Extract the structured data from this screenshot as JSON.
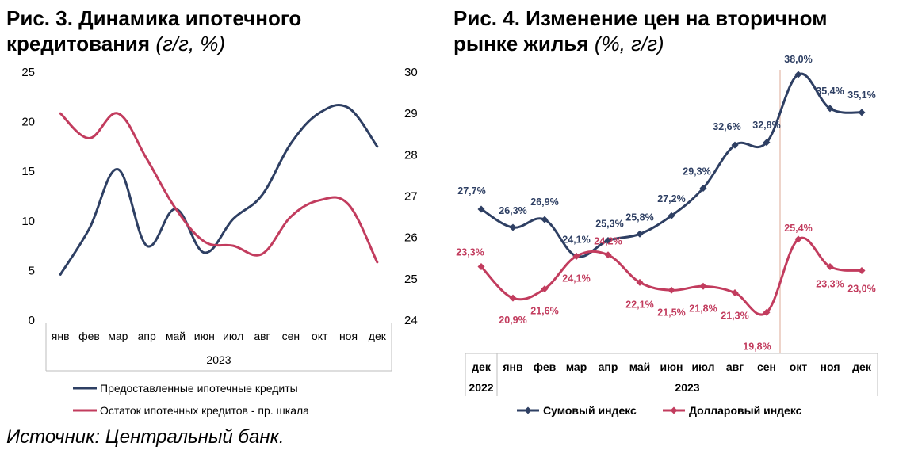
{
  "left_title": {
    "main": "Рис. 3. Динамика ипотечного кредитования",
    "unit": "(г/г, %)"
  },
  "right_title": {
    "main": "Рис. 4. Изменение цен на вторичном рынке жилья",
    "unit": "(%, г/г)"
  },
  "source": "Источник: Центральный банк.",
  "chart_data": [
    {
      "type": "line",
      "categories": [
        "янв",
        "фев",
        "мар",
        "апр",
        "май",
        "июн",
        "июл",
        "авг",
        "сен",
        "окт",
        "ноя",
        "дек"
      ],
      "year_label": "2023",
      "ylim_left": [
        0,
        25
      ],
      "yticks_left": [
        "0",
        "5",
        "10",
        "15",
        "20",
        "25"
      ],
      "ylim_right": [
        24,
        30
      ],
      "yticks_right": [
        "24",
        "25",
        "26",
        "27",
        "28",
        "29",
        "30"
      ],
      "grid": false,
      "legend_position": "bottom",
      "series": [
        {
          "name": "Предоставленные ипотечные кредиты",
          "axis": "left",
          "color": "#2e3f63",
          "values": [
            4.6,
            9.2,
            15.2,
            7.5,
            11.2,
            6.8,
            10.2,
            12.6,
            17.8,
            20.9,
            21.4,
            17.5
          ]
        },
        {
          "name": "Остаток ипотечных кредитов - пр. шкала",
          "axis": "right",
          "color": "#c23c5e",
          "values": [
            29.0,
            28.4,
            29.0,
            27.9,
            26.7,
            25.9,
            25.8,
            25.6,
            26.5,
            26.9,
            26.8,
            25.4
          ]
        }
      ]
    },
    {
      "type": "line",
      "categories": [
        "дек",
        "янв",
        "фев",
        "мар",
        "апр",
        "май",
        "июн",
        "июл",
        "авг",
        "сен",
        "окт",
        "ноя",
        "дек"
      ],
      "years": [
        {
          "label": "2022",
          "from": 0,
          "to": 0
        },
        {
          "label": "2023",
          "from": 1,
          "to": 12
        }
      ],
      "ylim": [
        18,
        40
      ],
      "grid": false,
      "vertical_marker_index": 10,
      "legend_position": "bottom",
      "series": [
        {
          "name": "Сумовый индекс",
          "color": "#2e3f63",
          "marker": "diamond",
          "values": [
            27.7,
            26.3,
            26.9,
            24.1,
            25.3,
            25.8,
            27.2,
            29.3,
            32.6,
            32.8,
            38.0,
            35.4,
            35.1
          ],
          "labels": [
            "27,7%",
            "26,3%",
            "26,9%",
            "24,1%",
            "25,3%",
            "25,8%",
            "27,2%",
            "29,3%",
            "32,6%",
            "32,8%",
            "38,0%",
            "35,4%",
            "35,1%"
          ]
        },
        {
          "name": "Долларовый индекс",
          "color": "#c23c5e",
          "marker": "diamond",
          "values": [
            23.3,
            20.9,
            21.6,
            24.1,
            24.2,
            22.1,
            21.5,
            21.8,
            21.3,
            19.8,
            25.4,
            23.3,
            23.0
          ],
          "labels": [
            "23,3%",
            "20,9%",
            "21,6%",
            "24,1%",
            "24,2%",
            "22,1%",
            "21,5%",
            "21,8%",
            "21,3%",
            "19,8%",
            "25,4%",
            "23,3%",
            "23,0%"
          ]
        }
      ]
    }
  ]
}
